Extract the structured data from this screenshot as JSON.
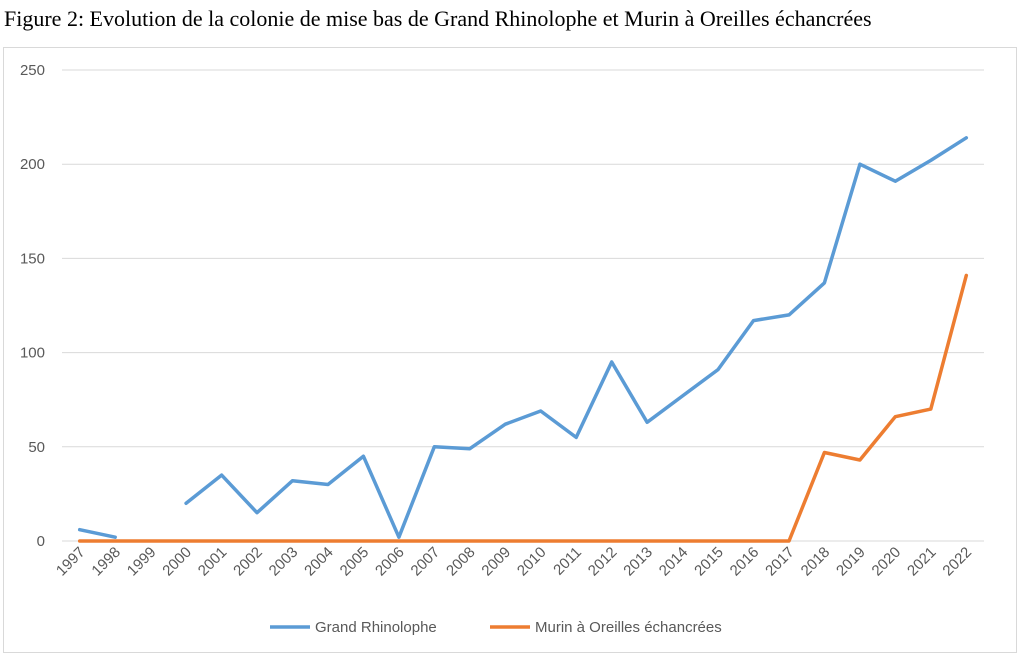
{
  "figure": {
    "title": "Figure 2: Evolution de la colonie de mise bas de Grand Rhinolophe et Murin à Oreilles échancrées"
  },
  "chart_data": {
    "type": "line",
    "title": "Figure 2: Evolution de la colonie de mise bas de Grand Rhinolophe et Murin à Oreilles échancrées",
    "xlabel": "",
    "ylabel": "",
    "x": [
      "1997",
      "1998",
      "1999",
      "2000",
      "2001",
      "2002",
      "2003",
      "2004",
      "2005",
      "2006",
      "2007",
      "2008",
      "2009",
      "2010",
      "2011",
      "2012",
      "2013",
      "2014",
      "2015",
      "2016",
      "2017",
      "2018",
      "2019",
      "2020",
      "2021",
      "2022"
    ],
    "ylim": [
      0,
      250
    ],
    "yticks": [
      0,
      50,
      100,
      150,
      200,
      250
    ],
    "grid": true,
    "legend_position": "bottom",
    "series": [
      {
        "name": "Grand Rhinolophe",
        "color": "#5b9bd5",
        "values": [
          6,
          2,
          null,
          20,
          35,
          15,
          32,
          30,
          45,
          2,
          50,
          49,
          62,
          69,
          55,
          95,
          63,
          77,
          91,
          117,
          120,
          137,
          200,
          191,
          202,
          214
        ]
      },
      {
        "name": "Murin à Oreilles échancrées",
        "color": "#ed7d31",
        "values": [
          0,
          0,
          0,
          0,
          0,
          0,
          0,
          0,
          0,
          0,
          0,
          0,
          0,
          0,
          0,
          0,
          0,
          0,
          0,
          0,
          0,
          47,
          43,
          66,
          70,
          141
        ]
      }
    ]
  }
}
